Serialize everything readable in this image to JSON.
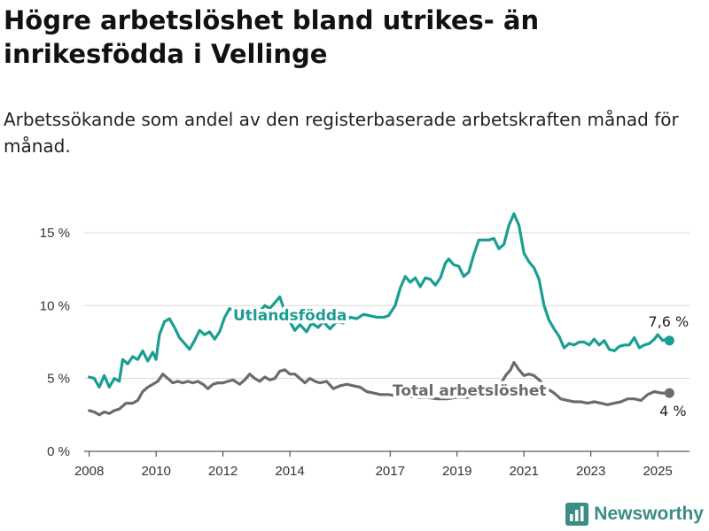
{
  "title": "Högre arbetslöshet bland utrikes- än inrikesfödda i Vellinge",
  "subtitle": "Arbetssökande som andel av den registerbaserade arbetskraften månad för månad.",
  "brand": {
    "name": "Newsworthy",
    "logo_icon": "bar-chart-icon",
    "color": "#3c8c86"
  },
  "chart_data": {
    "type": "line",
    "title": "Högre arbetslöshet bland utrikes- än inrikesfödda i Vellinge",
    "subtitle": "Arbetssökande som andel av den registerbaserade arbetskraften månad för månad.",
    "xlabel": "",
    "ylabel": "",
    "xlim": [
      2007.85,
      2025.95
    ],
    "ylim": [
      0,
      17
    ],
    "x_ticks": [
      2008,
      2010,
      2012,
      2014,
      2017,
      2019,
      2021,
      2023,
      2025
    ],
    "x_tick_labels": [
      "2008",
      "2010",
      "2012",
      "2014",
      "2017",
      "2019",
      "2021",
      "2023",
      "2025"
    ],
    "y_ticks": [
      0,
      5,
      10,
      15
    ],
    "y_tick_labels": [
      "0 %",
      "5 %",
      "10 %",
      "15 %"
    ],
    "grid": "horizontal",
    "legend": "inline labels",
    "series": [
      {
        "name": "Utlandsfödda",
        "color": "#1a9e93",
        "end_label": "7,6 %",
        "points": [
          [
            2008.0,
            5.1
          ],
          [
            2008.15,
            5.0
          ],
          [
            2008.3,
            4.4
          ],
          [
            2008.45,
            5.2
          ],
          [
            2008.6,
            4.4
          ],
          [
            2008.75,
            5.0
          ],
          [
            2008.9,
            4.8
          ],
          [
            2009.0,
            6.3
          ],
          [
            2009.15,
            6.0
          ],
          [
            2009.3,
            6.5
          ],
          [
            2009.45,
            6.3
          ],
          [
            2009.6,
            6.9
          ],
          [
            2009.75,
            6.2
          ],
          [
            2009.9,
            6.8
          ],
          [
            2010.0,
            6.3
          ],
          [
            2010.1,
            8.0
          ],
          [
            2010.25,
            8.9
          ],
          [
            2010.4,
            9.1
          ],
          [
            2010.55,
            8.5
          ],
          [
            2010.7,
            7.8
          ],
          [
            2010.85,
            7.4
          ],
          [
            2011.0,
            7.0
          ],
          [
            2011.15,
            7.6
          ],
          [
            2011.3,
            8.3
          ],
          [
            2011.45,
            8.0
          ],
          [
            2011.6,
            8.2
          ],
          [
            2011.75,
            7.7
          ],
          [
            2011.9,
            8.2
          ],
          [
            2012.05,
            9.2
          ],
          [
            2012.2,
            9.8
          ],
          [
            2012.35,
            9.6
          ],
          [
            2012.5,
            9.2
          ],
          [
            2012.65,
            9.0
          ],
          [
            2012.8,
            9.4
          ],
          [
            2012.95,
            9.1
          ],
          [
            2013.1,
            9.6
          ],
          [
            2013.25,
            10.0
          ],
          [
            2013.4,
            9.8
          ],
          [
            2013.55,
            10.2
          ],
          [
            2013.7,
            10.6
          ],
          [
            2013.85,
            9.6
          ],
          [
            2014.0,
            8.9
          ],
          [
            2014.15,
            8.3
          ],
          [
            2014.3,
            8.7
          ],
          [
            2014.5,
            8.2
          ],
          [
            2014.65,
            8.8
          ],
          [
            2014.85,
            8.5
          ],
          [
            2015.0,
            8.9
          ],
          [
            2015.2,
            8.4
          ],
          [
            2015.4,
            8.9
          ],
          [
            2015.6,
            8.8
          ],
          [
            2015.8,
            9.2
          ],
          [
            2016.0,
            9.1
          ],
          [
            2016.2,
            9.4
          ],
          [
            2016.4,
            9.3
          ],
          [
            2016.6,
            9.2
          ],
          [
            2016.8,
            9.2
          ],
          [
            2016.95,
            9.3
          ],
          [
            2017.15,
            10.0
          ],
          [
            2017.3,
            11.2
          ],
          [
            2017.45,
            12.0
          ],
          [
            2017.6,
            11.6
          ],
          [
            2017.75,
            11.9
          ],
          [
            2017.9,
            11.3
          ],
          [
            2018.05,
            11.9
          ],
          [
            2018.2,
            11.8
          ],
          [
            2018.35,
            11.4
          ],
          [
            2018.5,
            11.9
          ],
          [
            2018.65,
            12.9
          ],
          [
            2018.75,
            13.2
          ],
          [
            2018.9,
            12.8
          ],
          [
            2019.05,
            12.7
          ],
          [
            2019.2,
            12.0
          ],
          [
            2019.35,
            12.3
          ],
          [
            2019.5,
            13.5
          ],
          [
            2019.65,
            14.5
          ],
          [
            2019.8,
            14.5
          ],
          [
            2019.95,
            14.5
          ],
          [
            2020.1,
            14.6
          ],
          [
            2020.25,
            13.9
          ],
          [
            2020.4,
            14.2
          ],
          [
            2020.55,
            15.5
          ],
          [
            2020.7,
            16.3
          ],
          [
            2020.85,
            15.5
          ],
          [
            2021.0,
            13.6
          ],
          [
            2021.15,
            13.0
          ],
          [
            2021.3,
            12.6
          ],
          [
            2021.45,
            11.8
          ],
          [
            2021.6,
            10.0
          ],
          [
            2021.75,
            9.0
          ],
          [
            2021.9,
            8.4
          ],
          [
            2022.05,
            7.9
          ],
          [
            2022.2,
            7.1
          ],
          [
            2022.35,
            7.4
          ],
          [
            2022.5,
            7.3
          ],
          [
            2022.65,
            7.5
          ],
          [
            2022.8,
            7.5
          ],
          [
            2022.95,
            7.3
          ],
          [
            2023.1,
            7.7
          ],
          [
            2023.25,
            7.3
          ],
          [
            2023.4,
            7.6
          ],
          [
            2023.55,
            7.0
          ],
          [
            2023.7,
            6.9
          ],
          [
            2023.85,
            7.2
          ],
          [
            2024.0,
            7.3
          ],
          [
            2024.15,
            7.3
          ],
          [
            2024.3,
            7.8
          ],
          [
            2024.45,
            7.1
          ],
          [
            2024.6,
            7.3
          ],
          [
            2024.75,
            7.4
          ],
          [
            2024.9,
            7.7
          ],
          [
            2025.0,
            8.0
          ],
          [
            2025.15,
            7.6
          ],
          [
            2025.25,
            7.7
          ],
          [
            2025.35,
            7.6
          ]
        ]
      },
      {
        "name": "Total arbetslöshet",
        "color": "#6b6b6e",
        "end_label": "4 %",
        "points": [
          [
            2008.0,
            2.8
          ],
          [
            2008.15,
            2.7
          ],
          [
            2008.3,
            2.5
          ],
          [
            2008.45,
            2.7
          ],
          [
            2008.6,
            2.6
          ],
          [
            2008.75,
            2.8
          ],
          [
            2008.9,
            2.9
          ],
          [
            2009.1,
            3.3
          ],
          [
            2009.3,
            3.3
          ],
          [
            2009.45,
            3.5
          ],
          [
            2009.6,
            4.1
          ],
          [
            2009.75,
            4.4
          ],
          [
            2009.9,
            4.6
          ],
          [
            2010.05,
            4.8
          ],
          [
            2010.2,
            5.3
          ],
          [
            2010.35,
            5.0
          ],
          [
            2010.5,
            4.7
          ],
          [
            2010.65,
            4.8
          ],
          [
            2010.8,
            4.7
          ],
          [
            2010.95,
            4.8
          ],
          [
            2011.1,
            4.7
          ],
          [
            2011.25,
            4.8
          ],
          [
            2011.4,
            4.6
          ],
          [
            2011.55,
            4.3
          ],
          [
            2011.7,
            4.6
          ],
          [
            2011.85,
            4.7
          ],
          [
            2012.0,
            4.7
          ],
          [
            2012.15,
            4.8
          ],
          [
            2012.3,
            4.9
          ],
          [
            2012.5,
            4.6
          ],
          [
            2012.65,
            4.9
          ],
          [
            2012.8,
            5.3
          ],
          [
            2012.95,
            5.0
          ],
          [
            2013.1,
            4.8
          ],
          [
            2013.25,
            5.1
          ],
          [
            2013.4,
            4.9
          ],
          [
            2013.55,
            5.0
          ],
          [
            2013.7,
            5.5
          ],
          [
            2013.85,
            5.6
          ],
          [
            2014.0,
            5.3
          ],
          [
            2014.15,
            5.3
          ],
          [
            2014.3,
            5.0
          ],
          [
            2014.45,
            4.7
          ],
          [
            2014.6,
            5.0
          ],
          [
            2014.75,
            4.8
          ],
          [
            2014.9,
            4.7
          ],
          [
            2015.1,
            4.8
          ],
          [
            2015.3,
            4.3
          ],
          [
            2015.5,
            4.5
          ],
          [
            2015.7,
            4.6
          ],
          [
            2015.9,
            4.5
          ],
          [
            2016.1,
            4.4
          ],
          [
            2016.3,
            4.1
          ],
          [
            2016.5,
            4.0
          ],
          [
            2016.7,
            3.9
          ],
          [
            2016.95,
            3.9
          ],
          [
            2017.2,
            3.8
          ],
          [
            2017.5,
            3.8
          ],
          [
            2017.8,
            3.7
          ],
          [
            2018.1,
            3.7
          ],
          [
            2018.4,
            3.6
          ],
          [
            2018.7,
            3.6
          ],
          [
            2019.0,
            3.7
          ],
          [
            2019.3,
            3.7
          ],
          [
            2019.6,
            3.8
          ],
          [
            2019.9,
            4.0
          ],
          [
            2020.2,
            4.2
          ],
          [
            2020.45,
            5.2
          ],
          [
            2020.6,
            5.6
          ],
          [
            2020.7,
            6.1
          ],
          [
            2020.85,
            5.6
          ],
          [
            2021.0,
            5.2
          ],
          [
            2021.15,
            5.3
          ],
          [
            2021.3,
            5.2
          ],
          [
            2021.5,
            4.8
          ],
          [
            2021.7,
            4.3
          ],
          [
            2021.9,
            4.0
          ],
          [
            2022.1,
            3.6
          ],
          [
            2022.3,
            3.5
          ],
          [
            2022.5,
            3.4
          ],
          [
            2022.7,
            3.4
          ],
          [
            2022.9,
            3.3
          ],
          [
            2023.1,
            3.4
          ],
          [
            2023.3,
            3.3
          ],
          [
            2023.5,
            3.2
          ],
          [
            2023.7,
            3.3
          ],
          [
            2023.9,
            3.4
          ],
          [
            2024.1,
            3.6
          ],
          [
            2024.3,
            3.6
          ],
          [
            2024.5,
            3.5
          ],
          [
            2024.7,
            3.9
          ],
          [
            2024.9,
            4.1
          ],
          [
            2025.1,
            4.0
          ],
          [
            2025.35,
            4.0
          ]
        ]
      }
    ]
  }
}
